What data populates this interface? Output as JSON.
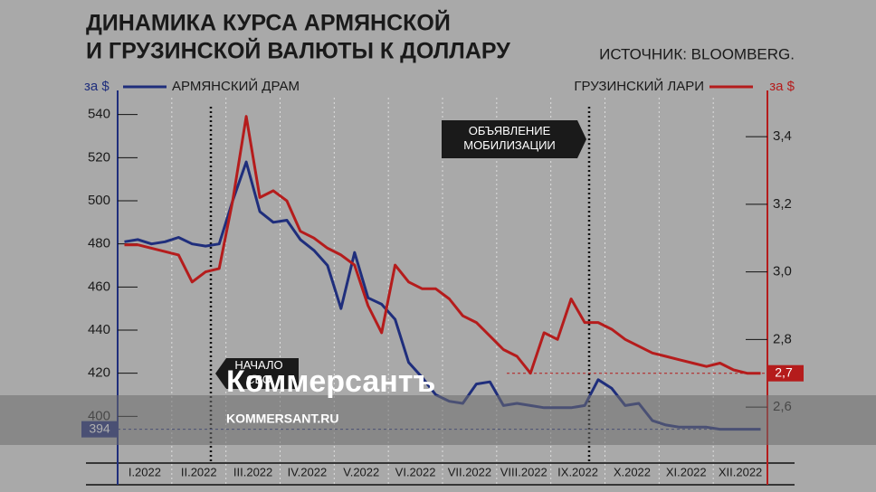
{
  "chart_data": {
    "type": "line",
    "title": [
      "ДИНАМИКА КУРСА АРМЯНСКОЙ",
      "И ГРУЗИНСКОЙ ВАЛЮТЫ К ДОЛЛАРУ"
    ],
    "source": "ИСТОЧНИК: BLOOMBERG.",
    "y_unit": "за $",
    "y2_unit": "за $",
    "categories": [
      "I.2022",
      "II.2022",
      "III.2022",
      "IV.2022",
      "V.2022",
      "VI.2022",
      "VII.2022",
      "VIII.2022",
      "IX.2022",
      "X.2022",
      "XI.2022",
      "XII.2022"
    ],
    "series": [
      {
        "name": "АРМЯНСКИЙ ДРАМ",
        "color": "#1f2e7c",
        "axis": "y",
        "values": [
          [
            481,
            482,
            480,
            481
          ],
          [
            483,
            480,
            479,
            480
          ],
          [
            500,
            518,
            495,
            490
          ],
          [
            491,
            482,
            477,
            470
          ],
          [
            450,
            476,
            455,
            452
          ],
          [
            445,
            425,
            418,
            410
          ],
          [
            407,
            406,
            415,
            416
          ],
          [
            405,
            406,
            405,
            404
          ],
          [
            404,
            404,
            405,
            417
          ],
          [
            413,
            405,
            406,
            398
          ],
          [
            396,
            395,
            395,
            395
          ],
          [
            394,
            394,
            394,
            394
          ]
        ]
      },
      {
        "name": "ГРУЗИНСКИЙ ЛАРИ",
        "color": "#b51c1c",
        "axis": "y2",
        "values": [
          [
            3.08,
            3.08,
            3.07,
            3.06
          ],
          [
            3.05,
            2.97,
            3.0,
            3.01
          ],
          [
            3.21,
            3.46,
            3.22,
            3.24
          ],
          [
            3.21,
            3.12,
            3.1,
            3.07
          ],
          [
            3.05,
            3.02,
            2.9,
            2.82
          ],
          [
            3.02,
            2.97,
            2.95,
            2.95
          ],
          [
            2.92,
            2.87,
            2.85,
            2.81
          ],
          [
            2.77,
            2.75,
            2.7,
            2.82
          ],
          [
            2.8,
            2.92,
            2.85,
            2.85
          ],
          [
            2.83,
            2.8,
            2.78,
            2.76
          ],
          [
            2.75,
            2.74,
            2.73,
            2.72
          ],
          [
            2.73,
            2.71,
            2.7,
            2.7
          ]
        ]
      }
    ],
    "ylim": [
      380,
      547
    ],
    "yticks": [
      400,
      420,
      440,
      460,
      480,
      500,
      520,
      540
    ],
    "y2lim": [
      2.445,
      3.51
    ],
    "y2ticks": [
      {
        "value": 2.6,
        "label": "2,6"
      },
      {
        "value": 2.8,
        "label": "2,8"
      },
      {
        "value": 3.0,
        "label": "3,0"
      },
      {
        "value": 3.2,
        "label": "3,2"
      },
      {
        "value": 3.4,
        "label": "3,4"
      }
    ],
    "end_labels": [
      {
        "value": 394,
        "label": "394",
        "axis": "y"
      },
      {
        "value": 2.7,
        "label": "2,7",
        "axis": "y2"
      }
    ],
    "annotations": [
      "НАЧАЛО СВО",
      "ОБЪЯВЛЕНИЕ МОБИЛИЗАЦИИ"
    ],
    "watermark": [
      "Коммерсантъ",
      "KOMMERSANT.RU"
    ]
  }
}
